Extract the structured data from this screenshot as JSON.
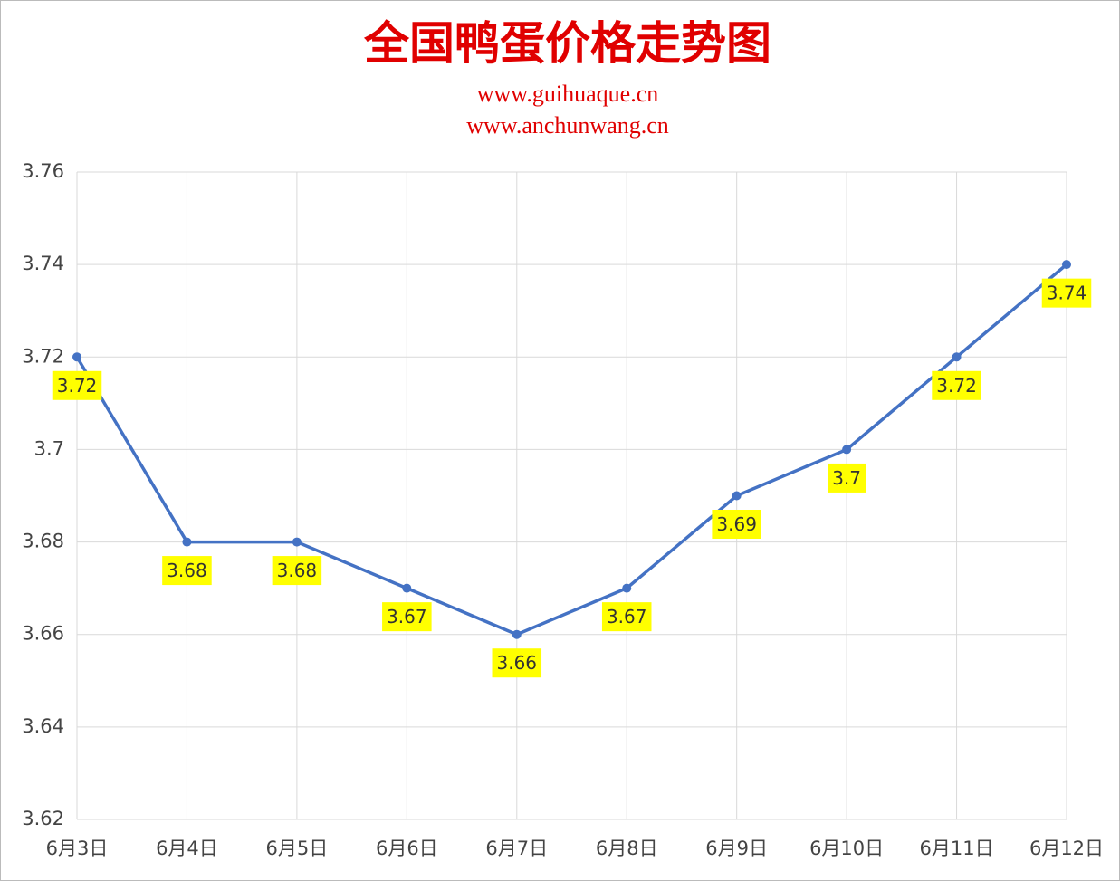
{
  "chart_data": {
    "type": "line",
    "title": "全国鸭蛋价格走势图",
    "subtitles": [
      "www.guihuaque.cn",
      "www.anchunwang.cn"
    ],
    "categories": [
      "6月3日",
      "6月4日",
      "6月5日",
      "6月6日",
      "6月7日",
      "6月8日",
      "6月9日",
      "6月10日",
      "6月11日",
      "6月12日"
    ],
    "series": [
      {
        "color": "#4472c4",
        "values": [
          3.72,
          3.68,
          3.68,
          3.67,
          3.66,
          3.67,
          3.69,
          3.7,
          3.72,
          3.74
        ]
      }
    ],
    "ylim": [
      3.62,
      3.76
    ],
    "yticks": [
      3.62,
      3.64,
      3.66,
      3.68,
      3.7,
      3.72,
      3.74,
      3.76
    ],
    "grid": true,
    "label_color": "#ffff00"
  }
}
